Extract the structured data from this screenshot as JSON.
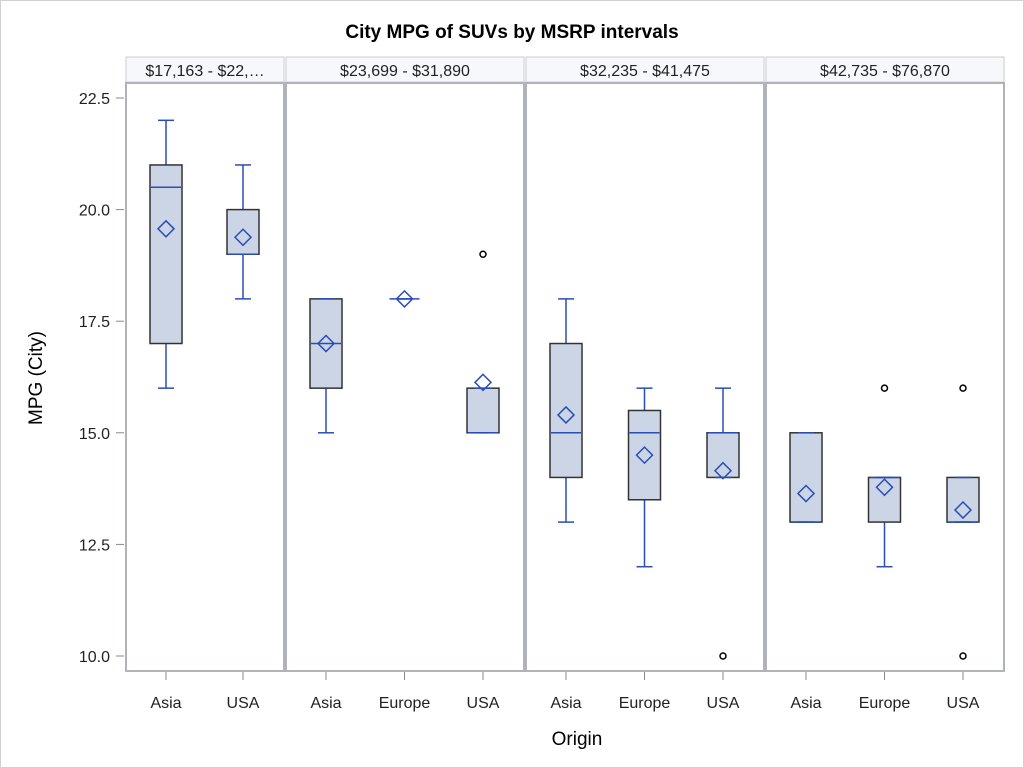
{
  "chart_data": {
    "type": "box",
    "title": "City MPG of SUVs by MSRP intervals",
    "xlabel": "Origin",
    "ylabel": "MPG (City)",
    "ylim": [
      9.7,
      23.2
    ],
    "yticks": [
      "10.0",
      "12.5",
      "15.0",
      "17.5",
      "20.0",
      "22.5"
    ],
    "grid": false,
    "colors": {
      "box_fill": "#cbd5e5",
      "box_edge": "#333333",
      "whisker": "#2a4db5",
      "mean_marker": "#2a4db5",
      "outlier": "#000000",
      "panel_border": "#b0b3b8",
      "header_fill": "#f6f8fc"
    },
    "panels": [
      {
        "header": "$17,163 -  $22,…",
        "groups": [
          {
            "category": "Asia",
            "min": 16,
            "q1": 17,
            "median": 20.5,
            "q3": 21,
            "max": 22,
            "mean": 19.57,
            "outliers": []
          },
          {
            "category": "USA",
            "min": 18,
            "q1": 19,
            "median": 19,
            "q3": 20,
            "max": 21,
            "mean": 19.38,
            "outliers": []
          }
        ]
      },
      {
        "header": "$23,699 -  $31,890",
        "groups": [
          {
            "category": "Asia",
            "min": 15,
            "q1": 16,
            "median": 17,
            "q3": 18,
            "max": 18,
            "mean": 17.0,
            "outliers": []
          },
          {
            "category": "Europe",
            "min": 18,
            "q1": 18,
            "median": 18,
            "q3": 18,
            "max": 18,
            "mean": 18.0,
            "outliers": []
          },
          {
            "category": "USA",
            "min": 15,
            "q1": 15,
            "median": 15,
            "q3": 16,
            "max": 16,
            "mean": 16.13,
            "outliers": [
              19
            ]
          }
        ]
      },
      {
        "header": "$32,235 -  $41,475",
        "groups": [
          {
            "category": "Asia",
            "min": 13,
            "q1": 14,
            "median": 15,
            "q3": 17,
            "max": 18,
            "mean": 15.4,
            "outliers": []
          },
          {
            "category": "Europe",
            "min": 12,
            "q1": 13.5,
            "median": 15,
            "q3": 15.5,
            "max": 16,
            "mean": 14.5,
            "outliers": []
          },
          {
            "category": "USA",
            "min": 14,
            "q1": 14,
            "median": 15,
            "q3": 15,
            "max": 16,
            "mean": 14.15,
            "outliers": [
              10
            ]
          }
        ]
      },
      {
        "header": "$42,735 -  $76,870",
        "groups": [
          {
            "category": "Asia",
            "min": 13,
            "q1": 13,
            "median": 13,
            "q3": 15,
            "max": 15,
            "mean": 13.64,
            "outliers": []
          },
          {
            "category": "Europe",
            "min": 12,
            "q1": 13,
            "median": 14,
            "q3": 14,
            "max": 14,
            "mean": 13.78,
            "outliers": [
              16
            ]
          },
          {
            "category": "USA",
            "min": 13,
            "q1": 13,
            "median": 13,
            "q3": 14,
            "max": 14,
            "mean": 13.27,
            "outliers": [
              16,
              10
            ]
          }
        ]
      }
    ]
  }
}
